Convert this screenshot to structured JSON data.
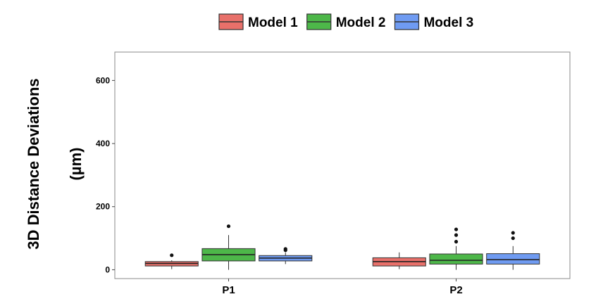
{
  "chart_data": {
    "type": "box",
    "ylabel_lines": [
      "3D Distance Deviations",
      "(µm)"
    ],
    "categories": [
      "P1",
      "P2"
    ],
    "yticks": [
      0,
      200,
      400,
      600
    ],
    "ylim": [
      -28,
      690
    ],
    "legend_position": "top",
    "grid": false,
    "series": [
      {
        "name": "Model 1",
        "color": "#E8706A",
        "boxes": [
          {
            "category": "P1",
            "min": 2,
            "q1": 12,
            "median": 20,
            "q3": 26,
            "max": 30,
            "outliers": [
              46
            ]
          },
          {
            "category": "P2",
            "min": 2,
            "q1": 12,
            "median": 26,
            "q3": 38,
            "max": 55,
            "outliers": []
          }
        ]
      },
      {
        "name": "Model 2",
        "color": "#4DB749",
        "boxes": [
          {
            "category": "P1",
            "min": 0,
            "q1": 28,
            "median": 48,
            "q3": 67,
            "max": 110,
            "outliers": [
              138
            ]
          },
          {
            "category": "P2",
            "min": 0,
            "q1": 18,
            "median": 30,
            "q3": 50,
            "max": 75,
            "outliers": [
              89,
              110,
              128
            ]
          }
        ]
      },
      {
        "name": "Model 3",
        "color": "#6F9BF2",
        "boxes": [
          {
            "category": "P1",
            "min": 18,
            "q1": 28,
            "median": 37,
            "q3": 45,
            "max": 55,
            "outliers": [
              62,
              66
            ]
          },
          {
            "category": "P2",
            "min": 0,
            "q1": 18,
            "median": 32,
            "q3": 51,
            "max": 75,
            "outliers": [
              100,
              117
            ]
          }
        ]
      }
    ]
  }
}
